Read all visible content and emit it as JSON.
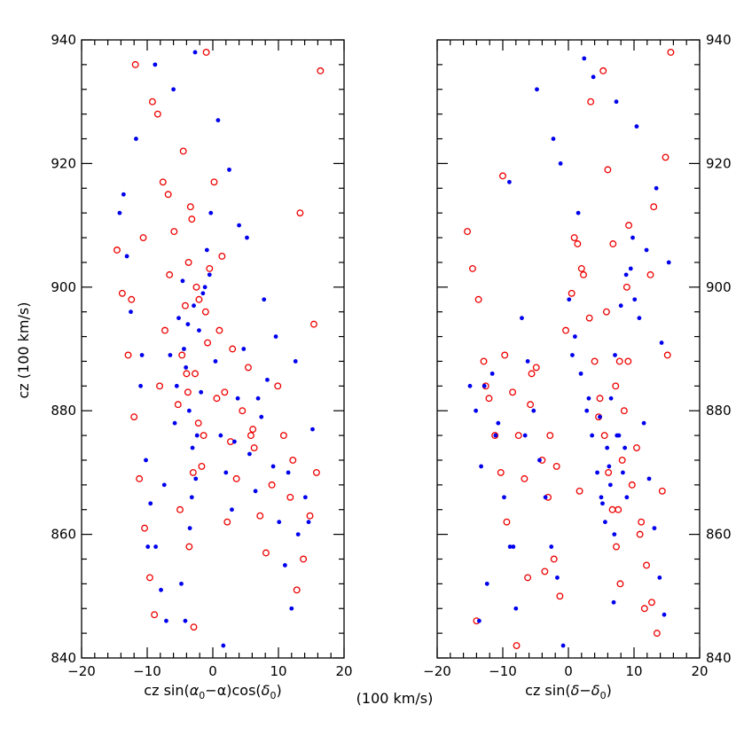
{
  "figure": {
    "shared_ylabel": "cz (100 km/s)",
    "shared_xunit": "(100 km/s)",
    "colors": {
      "blue_points": "#0000ee",
      "red_points": "#ee0000",
      "axes": "#000000"
    }
  },
  "chart_data": [
    {
      "type": "scatter",
      "xlabel_parts": {
        "pre": "cz sin(",
        "a1": "α",
        "a1sub": "0",
        "mid1": "−α)cos(",
        "d1": "δ",
        "d1sub": "0",
        "post": ")"
      },
      "xlim": [
        -20,
        20
      ],
      "ylim": [
        840,
        940
      ],
      "xticks": [
        -20,
        -10,
        0,
        10,
        20
      ],
      "yticks": [
        840,
        860,
        880,
        900,
        920,
        940
      ],
      "ytick_labels_side": "left",
      "series": [
        {
          "marker": "filled-dot",
          "color": "#0000ee",
          "x": [
            -14.2,
            -13.1,
            -12.5,
            -11.0,
            -10.2,
            -9.5,
            -8.7,
            -7.9,
            -7.1,
            -6.5,
            -5.8,
            -5.2,
            -4.6,
            -4.1,
            -3.6,
            -3.1,
            -2.6,
            -2.1,
            -1.5,
            -0.9,
            -0.3,
            0.4,
            1.2,
            2.0,
            2.9,
            3.8,
            4.7,
            5.6,
            6.5,
            7.4,
            8.3,
            9.2,
            10.1,
            11.0,
            12.0,
            13.0,
            14.1,
            15.2,
            -3.8,
            -2.9,
            -4.4,
            -1.8,
            -3.2,
            -0.5,
            2.5,
            -6.0,
            -8.8,
            -11.7,
            4.0,
            7.8,
            12.6,
            -2.4,
            -3.5,
            -4.8,
            1.6,
            -7.4,
            5.2,
            9.6,
            -13.6,
            0.8,
            -5.5,
            3.3,
            -9.9,
            14.6,
            -1.2,
            6.9,
            -10.8,
            11.5,
            -2.7,
            -4.2
          ],
          "y": [
            912,
            905,
            896,
            884,
            872,
            865,
            858,
            851,
            846,
            889,
            878,
            895,
            901,
            887,
            880,
            874,
            869,
            893,
            899,
            906,
            912,
            888,
            876,
            870,
            864,
            882,
            890,
            873,
            867,
            879,
            885,
            871,
            862,
            855,
            848,
            860,
            866,
            877,
            894,
            897,
            890,
            883,
            866,
            902,
            919,
            932,
            936,
            924,
            910,
            898,
            888,
            876,
            861,
            852,
            842,
            868,
            908,
            892,
            915,
            927,
            884,
            875,
            858,
            862,
            900,
            882,
            889,
            870,
            938,
            846
          ]
        },
        {
          "marker": "open-circle",
          "color": "#ee0000",
          "x": [
            -14.6,
            -13.8,
            -12.9,
            -12.0,
            -11.2,
            -10.4,
            -9.6,
            -8.9,
            -8.1,
            -7.3,
            -6.6,
            -5.9,
            -5.3,
            -4.7,
            -4.2,
            -3.7,
            -3.2,
            -2.7,
            -2.2,
            -1.7,
            -1.1,
            -0.5,
            0.2,
            1.0,
            1.8,
            2.7,
            3.6,
            4.5,
            5.4,
            6.3,
            7.2,
            8.1,
            9.0,
            9.9,
            10.8,
            11.8,
            12.8,
            13.8,
            14.8,
            15.8,
            16.4,
            -3.4,
            -2.5,
            -4.0,
            -1.4,
            -3.0,
            -0.8,
            -2.1,
            -3.8,
            -5.0,
            -6.8,
            -8.4,
            -10.6,
            -11.8,
            1.4,
            3.0,
            5.8,
            12.2,
            15.4,
            -2.9,
            -3.6,
            -1.0,
            -4.5,
            2.2,
            -7.6,
            -9.2,
            0.6,
            -12.4,
            6.1,
            13.3
          ],
          "y": [
            906,
            899,
            889,
            879,
            869,
            861,
            853,
            847,
            884,
            893,
            902,
            909,
            881,
            889,
            897,
            904,
            911,
            886,
            878,
            871,
            896,
            903,
            917,
            893,
            883,
            875,
            869,
            880,
            887,
            874,
            863,
            857,
            868,
            884,
            876,
            866,
            851,
            856,
            863,
            870,
            935,
            913,
            900,
            886,
            876,
            870,
            891,
            898,
            883,
            864,
            915,
            928,
            908,
            936,
            905,
            890,
            876,
            872,
            894,
            845,
            858,
            938,
            922,
            862,
            917,
            930,
            882,
            898,
            877,
            912
          ]
        }
      ]
    },
    {
      "type": "scatter",
      "xlabel_parts": {
        "pre": "cz sin(",
        "d1": "δ",
        "mid1": "−",
        "d2": "δ",
        "d2sub": "0",
        "post": ")"
      },
      "xlim": [
        -20,
        20
      ],
      "ylim": [
        840,
        940
      ],
      "xticks": [
        -20,
        -10,
        0,
        10,
        20
      ],
      "yticks": [
        840,
        860,
        880,
        900,
        920,
        940
      ],
      "ytick_labels_side": "right",
      "series": [
        {
          "marker": "filled-dot",
          "color": "#0000ee",
          "x": [
            -15.0,
            -14.1,
            -13.3,
            -12.4,
            -11.6,
            -10.7,
            -9.8,
            -8.9,
            -8.0,
            -7.1,
            -6.2,
            -5.3,
            -4.4,
            -3.5,
            -2.6,
            -1.7,
            -0.8,
            0.1,
            1.0,
            1.9,
            2.8,
            3.6,
            4.4,
            5.2,
            5.9,
            6.5,
            7.1,
            7.7,
            8.3,
            8.9,
            9.5,
            10.1,
            10.8,
            11.5,
            12.3,
            13.1,
            13.9,
            14.6,
            15.3,
            6.2,
            7.4,
            8.6,
            7.0,
            6.4,
            5.6,
            3.1,
            1.5,
            -2.3,
            -4.8,
            -9.0,
            -12.8,
            4.8,
            9.8,
            13.4,
            8.0,
            6.9,
            3.8,
            11.9,
            -13.6,
            -6.6,
            0.6,
            10.4,
            7.3,
            5.0,
            -1.2,
            14.2,
            8.8,
            2.4,
            -8.4,
            -11.1
          ],
          "y": [
            884,
            880,
            871,
            852,
            886,
            878,
            866,
            858,
            848,
            895,
            888,
            880,
            872,
            866,
            858,
            853,
            842,
            898,
            892,
            886,
            880,
            876,
            870,
            865,
            874,
            882,
            889,
            876,
            870,
            866,
            903,
            898,
            895,
            878,
            869,
            861,
            853,
            847,
            904,
            871,
            876,
            874,
            860,
            868,
            862,
            882,
            912,
            924,
            932,
            917,
            884,
            879,
            908,
            916,
            897,
            849,
            934,
            906,
            846,
            876,
            889,
            926,
            930,
            866,
            920,
            891,
            902,
            937,
            858,
            876
          ]
        },
        {
          "marker": "open-circle",
          "color": "#ee0000",
          "x": [
            -15.4,
            -14.6,
            -13.7,
            -12.9,
            -12.1,
            -11.2,
            -10.3,
            -9.4,
            -8.5,
            -7.6,
            -6.7,
            -5.8,
            -4.9,
            -4.0,
            -3.1,
            -2.2,
            -1.3,
            -0.4,
            0.5,
            1.4,
            2.3,
            3.2,
            4.0,
            4.8,
            5.5,
            6.1,
            6.7,
            7.3,
            7.9,
            8.5,
            9.1,
            9.7,
            10.4,
            11.1,
            11.9,
            12.7,
            13.5,
            14.3,
            15.1,
            15.6,
            7.6,
            8.2,
            6.8,
            7.2,
            5.8,
            4.6,
            2.0,
            -1.8,
            -5.6,
            -10.0,
            -14.0,
            3.4,
            9.2,
            12.5,
            14.8,
            -3.6,
            -7.9,
            0.9,
            6.0,
            10.9,
            8.9,
            -12.6,
            -2.8,
            5.3,
            13.0,
            -9.7,
            1.7,
            -6.2,
            11.6,
            7.8
          ],
          "y": [
            909,
            903,
            898,
            888,
            882,
            876,
            870,
            862,
            883,
            876,
            869,
            881,
            887,
            872,
            866,
            856,
            850,
            893,
            899,
            907,
            902,
            895,
            888,
            882,
            876,
            870,
            864,
            858,
            852,
            880,
            888,
            868,
            874,
            862,
            855,
            849,
            844,
            867,
            889,
            938,
            864,
            872,
            907,
            884,
            896,
            879,
            903,
            871,
            886,
            918,
            846,
            930,
            910,
            902,
            921,
            854,
            842,
            908,
            919,
            860,
            900,
            884,
            876,
            935,
            913,
            889,
            867,
            853,
            848,
            888
          ]
        }
      ]
    }
  ]
}
